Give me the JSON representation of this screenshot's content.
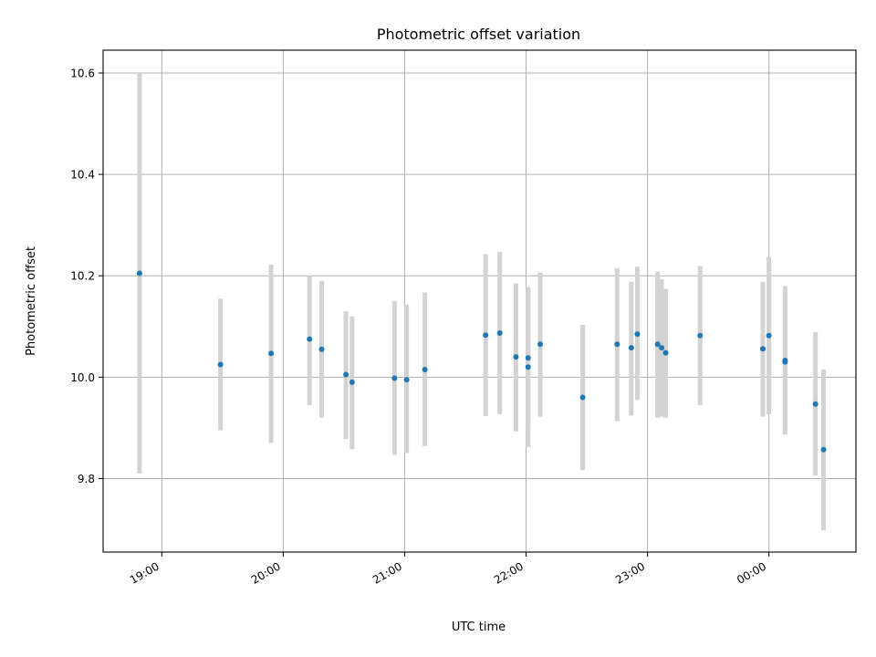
{
  "chart_data": {
    "type": "scatter",
    "title": "Photometric offset variation",
    "xlabel": "UTC time",
    "ylabel": "Photometric offset",
    "xlim": [
      "18:31",
      "00:43"
    ],
    "ylim": [
      9.655,
      10.645
    ],
    "grid": true,
    "x_ticks": [
      {
        "time": "19:00",
        "label": "19:00"
      },
      {
        "time": "20:00",
        "label": "20:00"
      },
      {
        "time": "21:00",
        "label": "21:00"
      },
      {
        "time": "22:00",
        "label": "22:00"
      },
      {
        "time": "23:00",
        "label": "23:00"
      },
      {
        "time": "00:00",
        "label": "00:00"
      }
    ],
    "y_ticks": [
      {
        "value": 9.8,
        "label": "9.8"
      },
      {
        "value": 10.0,
        "label": "10.0"
      },
      {
        "value": 10.2,
        "label": "10.2"
      },
      {
        "value": 10.4,
        "label": "10.4"
      },
      {
        "value": 10.6,
        "label": "10.6"
      }
    ],
    "marker_color": "#1f77b4",
    "errorbar_color": "#d3d3d3",
    "series": [
      {
        "points": [
          {
            "time": "18:49",
            "y": 10.205,
            "low": 9.81,
            "high": 10.6
          },
          {
            "time": "19:29",
            "y": 10.025,
            "low": 9.895,
            "high": 10.155
          },
          {
            "time": "19:54",
            "y": 10.047,
            "low": 9.87,
            "high": 10.222
          },
          {
            "time": "20:13",
            "y": 10.075,
            "low": 9.945,
            "high": 10.2
          },
          {
            "time": "20:19",
            "y": 10.055,
            "low": 9.92,
            "high": 10.19
          },
          {
            "time": "20:31",
            "y": 10.005,
            "low": 9.878,
            "high": 10.13
          },
          {
            "time": "20:34",
            "y": 9.99,
            "low": 9.858,
            "high": 10.12
          },
          {
            "time": "20:55",
            "y": 9.998,
            "low": 9.847,
            "high": 10.15
          },
          {
            "time": "21:01",
            "y": 9.995,
            "low": 9.85,
            "high": 10.143
          },
          {
            "time": "21:10",
            "y": 10.015,
            "low": 9.864,
            "high": 10.167
          },
          {
            "time": "21:40",
            "y": 10.083,
            "low": 9.923,
            "high": 10.243
          },
          {
            "time": "21:47",
            "y": 10.087,
            "low": 9.927,
            "high": 10.247
          },
          {
            "time": "21:55",
            "y": 10.04,
            "low": 9.893,
            "high": 10.185
          },
          {
            "time": "22:01",
            "y": 10.038,
            "low": 9.9,
            "high": 10.178
          },
          {
            "time": "22:01",
            "y": 10.02,
            "low": 9.862,
            "high": 10.17
          },
          {
            "time": "22:07",
            "y": 10.065,
            "low": 9.922,
            "high": 10.207
          },
          {
            "time": "22:28",
            "y": 9.96,
            "low": 9.817,
            "high": 10.103
          },
          {
            "time": "22:45",
            "y": 10.065,
            "low": 9.913,
            "high": 10.215
          },
          {
            "time": "22:52",
            "y": 10.058,
            "low": 9.924,
            "high": 10.188
          },
          {
            "time": "22:55",
            "y": 10.085,
            "low": 9.955,
            "high": 10.218
          },
          {
            "time": "23:05",
            "y": 10.065,
            "low": 9.92,
            "high": 10.208
          },
          {
            "time": "23:07",
            "y": 10.058,
            "low": 9.922,
            "high": 10.193
          },
          {
            "time": "23:09",
            "y": 10.048,
            "low": 9.92,
            "high": 10.174
          },
          {
            "time": "23:26",
            "y": 10.082,
            "low": 9.945,
            "high": 10.219
          },
          {
            "time": "23:57",
            "y": 10.056,
            "low": 9.922,
            "high": 10.188
          },
          {
            "time": "00:00",
            "y": 10.082,
            "low": 9.927,
            "high": 10.237
          },
          {
            "time": "00:08",
            "y": 10.033,
            "low": 9.887,
            "high": 10.18
          },
          {
            "time": "00:08",
            "y": 10.03,
            "low": 9.887,
            "high": 10.175
          },
          {
            "time": "00:23",
            "y": 9.947,
            "low": 9.806,
            "high": 10.089
          },
          {
            "time": "00:27",
            "y": 9.857,
            "low": 9.698,
            "high": 10.015
          }
        ]
      }
    ]
  }
}
